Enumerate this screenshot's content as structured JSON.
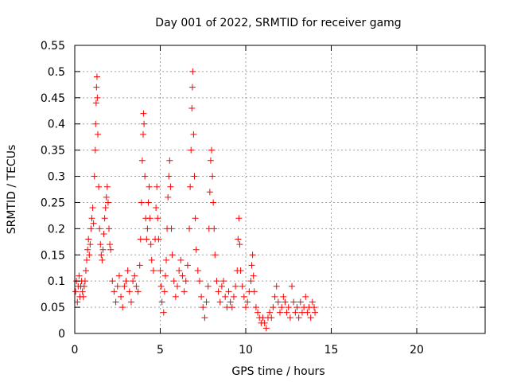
{
  "chart_data": {
    "type": "scatter",
    "title": "Day 001 of 2022, SRMTID for receiver gamg",
    "xlabel": "GPS time / hours",
    "ylabel": "SRMTID / TECUs",
    "xlim": [
      0,
      24
    ],
    "ylim": [
      0,
      0.55
    ],
    "xticks": [
      0,
      5,
      10,
      15,
      20
    ],
    "xtick_labels": [
      "0",
      "5",
      "10",
      "15",
      "20"
    ],
    "yticks": [
      0,
      0.05,
      0.1,
      0.15,
      0.2,
      0.25,
      0.3,
      0.35,
      0.4,
      0.45,
      0.5,
      0.55
    ],
    "ytick_labels": [
      "0",
      "0.05",
      "0.1",
      "0.15",
      "0.2",
      "0.25",
      "0.3",
      "0.35",
      "0.4",
      "0.45",
      "0.5",
      "0.55"
    ],
    "grid": true,
    "marker": "plus",
    "series": [
      {
        "name": "SRMTID",
        "color": "#ff0000",
        "points": [
          [
            0.05,
            0.08
          ],
          [
            0.1,
            0.1
          ],
          [
            0.15,
            0.06
          ],
          [
            0.2,
            0.09
          ],
          [
            0.25,
            0.11
          ],
          [
            0.3,
            0.07
          ],
          [
            0.35,
            0.09
          ],
          [
            0.4,
            0.1
          ],
          [
            0.45,
            0.08
          ],
          [
            0.5,
            0.07
          ],
          [
            0.55,
            0.09
          ],
          [
            0.6,
            0.1
          ],
          [
            0.65,
            0.12
          ],
          [
            0.7,
            0.14
          ],
          [
            0.75,
            0.16
          ],
          [
            0.8,
            0.18
          ],
          [
            0.85,
            0.15
          ],
          [
            0.9,
            0.17
          ],
          [
            0.95,
            0.2
          ],
          [
            1.0,
            0.22
          ],
          [
            1.05,
            0.24
          ],
          [
            1.1,
            0.21
          ],
          [
            1.15,
            0.3
          ],
          [
            1.2,
            0.35
          ],
          [
            1.22,
            0.4
          ],
          [
            1.25,
            0.44
          ],
          [
            1.27,
            0.47
          ],
          [
            1.3,
            0.49
          ],
          [
            1.32,
            0.45
          ],
          [
            1.35,
            0.38
          ],
          [
            1.4,
            0.28
          ],
          [
            1.45,
            0.2
          ],
          [
            1.5,
            0.17
          ],
          [
            1.55,
            0.15
          ],
          [
            1.6,
            0.14
          ],
          [
            1.65,
            0.16
          ],
          [
            1.7,
            0.19
          ],
          [
            1.75,
            0.22
          ],
          [
            1.8,
            0.24
          ],
          [
            1.85,
            0.26
          ],
          [
            1.9,
            0.28
          ],
          [
            1.95,
            0.25
          ],
          [
            2.0,
            0.2
          ],
          [
            2.05,
            0.17
          ],
          [
            2.1,
            0.16
          ],
          [
            2.2,
            0.1
          ],
          [
            2.3,
            0.08
          ],
          [
            2.4,
            0.06
          ],
          [
            2.5,
            0.09
          ],
          [
            2.6,
            0.11
          ],
          [
            2.7,
            0.07
          ],
          [
            2.8,
            0.05
          ],
          [
            2.9,
            0.09
          ],
          [
            3.0,
            0.1
          ],
          [
            3.1,
            0.12
          ],
          [
            3.2,
            0.08
          ],
          [
            3.3,
            0.06
          ],
          [
            3.4,
            0.1
          ],
          [
            3.5,
            0.11
          ],
          [
            3.6,
            0.09
          ],
          [
            3.7,
            0.08
          ],
          [
            3.8,
            0.13
          ],
          [
            3.85,
            0.18
          ],
          [
            3.9,
            0.25
          ],
          [
            3.95,
            0.33
          ],
          [
            4.0,
            0.38
          ],
          [
            4.02,
            0.42
          ],
          [
            4.05,
            0.4
          ],
          [
            4.1,
            0.3
          ],
          [
            4.15,
            0.22
          ],
          [
            4.2,
            0.18
          ],
          [
            4.25,
            0.2
          ],
          [
            4.3,
            0.25
          ],
          [
            4.35,
            0.28
          ],
          [
            4.4,
            0.22
          ],
          [
            4.45,
            0.17
          ],
          [
            4.5,
            0.14
          ],
          [
            4.6,
            0.12
          ],
          [
            4.7,
            0.18
          ],
          [
            4.75,
            0.24
          ],
          [
            4.8,
            0.28
          ],
          [
            4.85,
            0.22
          ],
          [
            4.9,
            0.18
          ],
          [
            5.0,
            0.12
          ],
          [
            5.05,
            0.09
          ],
          [
            5.1,
            0.06
          ],
          [
            5.2,
            0.04
          ],
          [
            5.25,
            0.08
          ],
          [
            5.3,
            0.11
          ],
          [
            5.35,
            0.14
          ],
          [
            5.4,
            0.2
          ],
          [
            5.45,
            0.26
          ],
          [
            5.5,
            0.3
          ],
          [
            5.55,
            0.33
          ],
          [
            5.6,
            0.28
          ],
          [
            5.65,
            0.2
          ],
          [
            5.7,
            0.15
          ],
          [
            5.8,
            0.1
          ],
          [
            5.9,
            0.07
          ],
          [
            6.0,
            0.09
          ],
          [
            6.1,
            0.12
          ],
          [
            6.2,
            0.14
          ],
          [
            6.3,
            0.11
          ],
          [
            6.4,
            0.08
          ],
          [
            6.5,
            0.1
          ],
          [
            6.6,
            0.13
          ],
          [
            6.7,
            0.2
          ],
          [
            6.75,
            0.28
          ],
          [
            6.8,
            0.35
          ],
          [
            6.85,
            0.43
          ],
          [
            6.88,
            0.47
          ],
          [
            6.9,
            0.5
          ],
          [
            6.95,
            0.38
          ],
          [
            7.0,
            0.3
          ],
          [
            7.05,
            0.22
          ],
          [
            7.1,
            0.16
          ],
          [
            7.2,
            0.12
          ],
          [
            7.3,
            0.1
          ],
          [
            7.4,
            0.07
          ],
          [
            7.5,
            0.05
          ],
          [
            7.6,
            0.03
          ],
          [
            7.7,
            0.06
          ],
          [
            7.8,
            0.09
          ],
          [
            7.85,
            0.2
          ],
          [
            7.9,
            0.27
          ],
          [
            7.95,
            0.33
          ],
          [
            8.0,
            0.35
          ],
          [
            8.05,
            0.3
          ],
          [
            8.1,
            0.25
          ],
          [
            8.15,
            0.2
          ],
          [
            8.2,
            0.15
          ],
          [
            8.3,
            0.1
          ],
          [
            8.4,
            0.08
          ],
          [
            8.5,
            0.06
          ],
          [
            8.6,
            0.09
          ],
          [
            8.7,
            0.1
          ],
          [
            8.8,
            0.07
          ],
          [
            8.9,
            0.05
          ],
          [
            9.0,
            0.08
          ],
          [
            9.1,
            0.06
          ],
          [
            9.2,
            0.05
          ],
          [
            9.3,
            0.07
          ],
          [
            9.4,
            0.09
          ],
          [
            9.5,
            0.12
          ],
          [
            9.55,
            0.18
          ],
          [
            9.6,
            0.22
          ],
          [
            9.65,
            0.17
          ],
          [
            9.7,
            0.12
          ],
          [
            9.8,
            0.09
          ],
          [
            9.9,
            0.07
          ],
          [
            10.0,
            0.05
          ],
          [
            10.1,
            0.06
          ],
          [
            10.2,
            0.08
          ],
          [
            10.3,
            0.1
          ],
          [
            10.35,
            0.13
          ],
          [
            10.4,
            0.15
          ],
          [
            10.45,
            0.11
          ],
          [
            10.5,
            0.08
          ],
          [
            10.6,
            0.05
          ],
          [
            10.7,
            0.04
          ],
          [
            10.8,
            0.03
          ],
          [
            10.9,
            0.02
          ],
          [
            11.0,
            0.03
          ],
          [
            11.1,
            0.02
          ],
          [
            11.2,
            0.01
          ],
          [
            11.3,
            0.03
          ],
          [
            11.4,
            0.04
          ],
          [
            11.5,
            0.03
          ],
          [
            11.6,
            0.05
          ],
          [
            11.7,
            0.07
          ],
          [
            11.8,
            0.09
          ],
          [
            11.9,
            0.06
          ],
          [
            12.0,
            0.04
          ],
          [
            12.1,
            0.05
          ],
          [
            12.2,
            0.07
          ],
          [
            12.3,
            0.06
          ],
          [
            12.4,
            0.04
          ],
          [
            12.5,
            0.05
          ],
          [
            12.6,
            0.03
          ],
          [
            12.7,
            0.09
          ],
          [
            12.8,
            0.06
          ],
          [
            12.9,
            0.04
          ],
          [
            13.0,
            0.05
          ],
          [
            13.1,
            0.03
          ],
          [
            13.2,
            0.06
          ],
          [
            13.3,
            0.04
          ],
          [
            13.4,
            0.05
          ],
          [
            13.5,
            0.07
          ],
          [
            13.6,
            0.04
          ],
          [
            13.7,
            0.05
          ],
          [
            13.8,
            0.03
          ],
          [
            13.9,
            0.06
          ],
          [
            14.0,
            0.05
          ],
          [
            14.05,
            0.04
          ]
        ]
      }
    ]
  }
}
